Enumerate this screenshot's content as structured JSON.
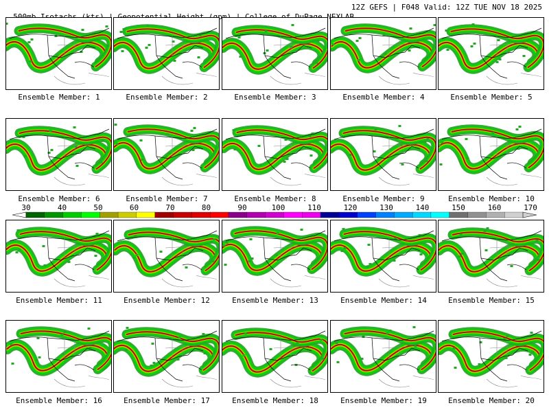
{
  "header": {
    "left": "500mb Isotachs (kts) | Geopotential Height (gpm) | College of DuPage NEXLAB",
    "right": "12Z GEFS | F048 Valid: 12Z TUE NOV 18 2025"
  },
  "colorbar": {
    "tick_labels": [
      "30",
      "40",
      "50",
      "60",
      "70",
      "80",
      "90",
      "100",
      "110",
      "120",
      "130",
      "140",
      "150",
      "160",
      "170"
    ],
    "colors": [
      "#006400",
      "#009600",
      "#00cc00",
      "#00ff00",
      "#a0a000",
      "#cccc00",
      "#ffff00",
      "#a00000",
      "#c80000",
      "#e00000",
      "#ff0000",
      "#8b008b",
      "#b000b0",
      "#d000d0",
      "#ff00ff",
      "#ee00ee",
      "#000099",
      "#0000cc",
      "#0040ff",
      "#0080ff",
      "#00aaff",
      "#00d8ff",
      "#00ffff",
      "#707070",
      "#909090",
      "#b0b0b0",
      "#d0d0d0"
    ]
  },
  "panels": [
    {
      "label": "Ensemble Member: 1"
    },
    {
      "label": "Ensemble Member: 2"
    },
    {
      "label": "Ensemble Member: 3"
    },
    {
      "label": "Ensemble Member: 4"
    },
    {
      "label": "Ensemble Member: 5"
    },
    {
      "label": "Ensemble Member: 6"
    },
    {
      "label": "Ensemble Member: 7"
    },
    {
      "label": "Ensemble Member: 8"
    },
    {
      "label": "Ensemble Member: 9"
    },
    {
      "label": "Ensemble Member: 10"
    },
    {
      "label": "Ensemble Member: 11"
    },
    {
      "label": "Ensemble Member: 12"
    },
    {
      "label": "Ensemble Member: 13"
    },
    {
      "label": "Ensemble Member: 14"
    },
    {
      "label": "Ensemble Member: 15"
    },
    {
      "label": "Ensemble Member: 16"
    },
    {
      "label": "Ensemble Member: 17"
    },
    {
      "label": "Ensemble Member: 18"
    },
    {
      "label": "Ensemble Member: 19"
    },
    {
      "label": "Ensemble Member: 20"
    }
  ],
  "colors": {
    "jet_light": "#22aa22",
    "jet_mid": "#00dd00",
    "jet_yellow": "#cccc00",
    "jet_core": "#aa0000",
    "coast": "#000000",
    "border": "#888888"
  }
}
